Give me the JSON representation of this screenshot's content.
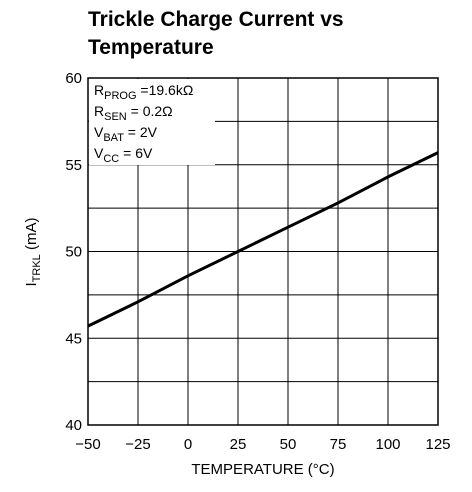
{
  "chart_data": {
    "type": "line",
    "title": [
      "Trickle Charge Current vs",
      "Temperature"
    ],
    "xlabel": "TEMPERATURE (°C)",
    "ylabel": [
      "I",
      "TRKL",
      " (mA)"
    ],
    "annotations": [
      [
        "R",
        "PROG",
        " =19.6kΩ"
      ],
      [
        "R",
        "SEN",
        " = 0.2Ω"
      ],
      [
        "V",
        "BAT",
        " = 2V"
      ],
      [
        "V",
        "CC",
        " = 6V"
      ]
    ],
    "x": [
      -50,
      -25,
      0,
      25,
      50,
      75,
      100,
      125
    ],
    "series": [
      {
        "name": "ITRKL",
        "color": "#000000",
        "values": [
          45.7,
          47.1,
          48.6,
          50.0,
          51.4,
          52.8,
          54.3,
          55.7
        ]
      }
    ],
    "xlim": [
      -50,
      125
    ],
    "xticks": [
      {
        "value": -50,
        "label": "−50"
      },
      {
        "value": -25,
        "label": "−25"
      },
      0,
      25,
      50,
      75,
      100,
      125
    ],
    "ylim": [
      40,
      60
    ],
    "yticks": [
      40,
      45,
      50,
      55,
      60
    ],
    "y_minor_ticks": [
      42.5,
      47.5,
      52.5,
      57.5
    ],
    "grid": true
  }
}
